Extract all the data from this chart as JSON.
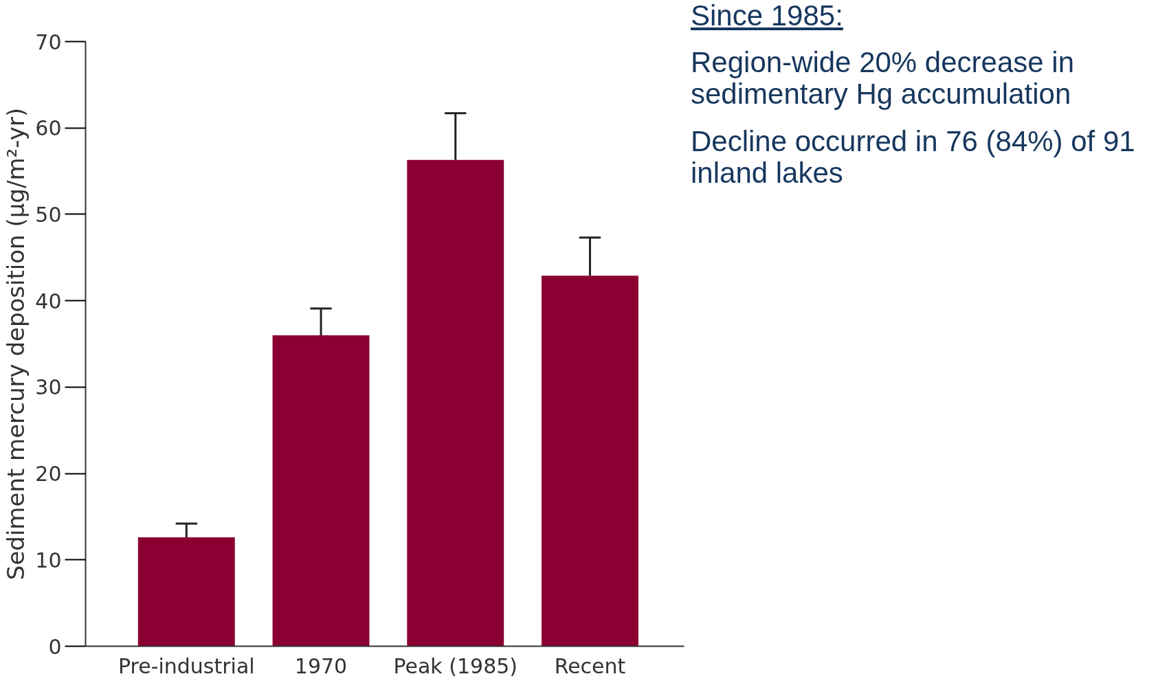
{
  "chart_data": {
    "type": "bar",
    "ylabel": "Sediment mercury deposition (µg/m²-yr)",
    "categories": [
      "Pre-industrial",
      "1970",
      "Peak (1985)",
      "Recent"
    ],
    "values": [
      12.6,
      36.0,
      56.3,
      42.9
    ],
    "errors": [
      [
        12.6,
        14.2
      ],
      [
        36.0,
        39.1
      ],
      [
        56.3,
        61.7
      ],
      [
        42.9,
        47.3
      ]
    ],
    "color": "#8b0033",
    "ylim": [
      0,
      70
    ],
    "yticks": [
      0,
      10,
      20,
      30,
      40,
      50,
      60,
      70
    ],
    "grid": false,
    "annotations": [
      "Since 1985:",
      "Region-wide 20% decrease in sedimentary Hg accumulation",
      "Decline occurred in 76 (84%) of 91 inland lakes"
    ]
  }
}
